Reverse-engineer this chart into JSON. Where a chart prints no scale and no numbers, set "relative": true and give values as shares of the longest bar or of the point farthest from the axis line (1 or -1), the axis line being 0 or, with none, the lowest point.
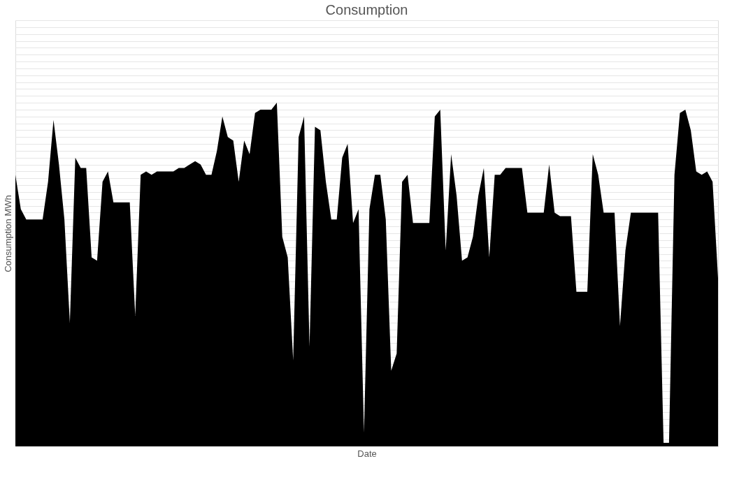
{
  "chart_data": {
    "type": "area",
    "title": "Consumption",
    "xlabel": "Date",
    "ylabel": "Consumption MWh",
    "relative": true,
    "grid": "y",
    "tick_labels": false,
    "categories": [
      null,
      null,
      null,
      null,
      null,
      null,
      null,
      null,
      null,
      null,
      null,
      null,
      null,
      null,
      null,
      null,
      null,
      null,
      null,
      null,
      null,
      null,
      null,
      null,
      null,
      null,
      null,
      null,
      null,
      null,
      null,
      null,
      null,
      null,
      null,
      null,
      null,
      null,
      null,
      null,
      null,
      null,
      null,
      null,
      null,
      null,
      null,
      null,
      null,
      null,
      null,
      null,
      null,
      null,
      null,
      null,
      null,
      null,
      null,
      null,
      null,
      null,
      null,
      null,
      null,
      null,
      null,
      null,
      null,
      null,
      null,
      null,
      null,
      null,
      null,
      null,
      null,
      null,
      null,
      null,
      null,
      null,
      null,
      null,
      null,
      null,
      null,
      null,
      null,
      null,
      null,
      null,
      null,
      null,
      null,
      null,
      null,
      null,
      null,
      null,
      null,
      null,
      null,
      null,
      null,
      null,
      null,
      null,
      null,
      null,
      null,
      null,
      null,
      null,
      null,
      null,
      null,
      null,
      null,
      null,
      null,
      null,
      null,
      null,
      null,
      null,
      null,
      null,
      null,
      null
    ],
    "series": [
      {
        "color": "#000000",
        "values": [
          0.79,
          0.69,
          0.66,
          0.66,
          0.66,
          0.66,
          0.77,
          0.95,
          0.82,
          0.66,
          0.36,
          0.84,
          0.81,
          0.81,
          0.55,
          0.54,
          0.77,
          0.8,
          0.71,
          0.71,
          0.71,
          0.71,
          0.38,
          0.79,
          0.8,
          0.79,
          0.8,
          0.8,
          0.8,
          0.8,
          0.81,
          0.81,
          0.82,
          0.83,
          0.82,
          0.79,
          0.79,
          0.86,
          0.96,
          0.9,
          0.89,
          0.77,
          0.89,
          0.85,
          0.97,
          0.98,
          0.98,
          0.98,
          1.0,
          0.61,
          0.55,
          0.25,
          0.9,
          0.96,
          0.29,
          0.93,
          0.92,
          0.77,
          0.66,
          0.66,
          0.84,
          0.88,
          0.65,
          0.69,
          0.04,
          0.69,
          0.79,
          0.79,
          0.66,
          0.22,
          0.27,
          0.77,
          0.79,
          0.65,
          0.65,
          0.65,
          0.65,
          0.96,
          0.98,
          0.57,
          0.85,
          0.73,
          0.54,
          0.55,
          0.61,
          0.73,
          0.81,
          0.55,
          0.79,
          0.79,
          0.81,
          0.81,
          0.81,
          0.81,
          0.68,
          0.68,
          0.68,
          0.68,
          0.82,
          0.68,
          0.67,
          0.67,
          0.67,
          0.45,
          0.45,
          0.45,
          0.85,
          0.79,
          0.68,
          0.68,
          0.68,
          0.35,
          0.57,
          0.68,
          0.68,
          0.68,
          0.68,
          0.68,
          0.68,
          0.01,
          0.01,
          0.79,
          0.97,
          0.98,
          0.92,
          0.8,
          0.79,
          0.8,
          0.77,
          0.49
        ]
      }
    ]
  }
}
